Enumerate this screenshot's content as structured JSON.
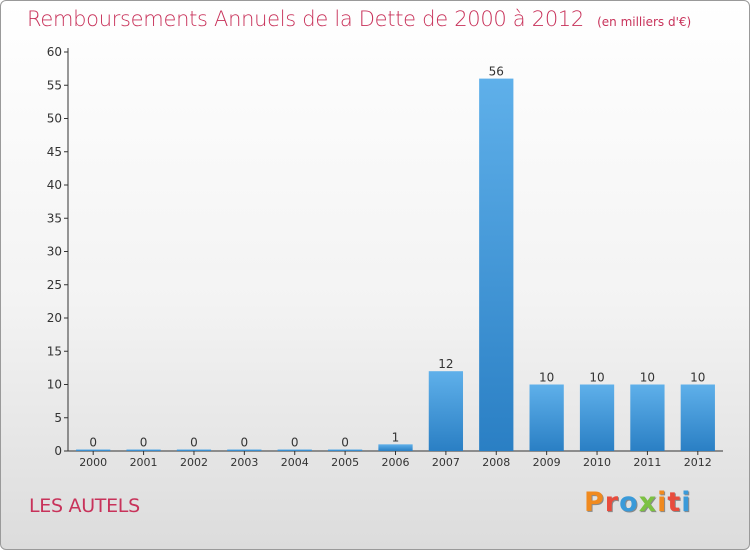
{
  "header": {
    "title": "Remboursements Annuels de la Dette de 2000 à 2012",
    "unit": "(en milliers d'€)"
  },
  "footer": {
    "commune": "LES AUTELS",
    "logo_text": "Proxiti"
  },
  "colors": {
    "title": "#c8325a",
    "bar_top": "#5fb0ea",
    "bar_bottom": "#2a7fc4",
    "logo_letters": [
      "#f08a1f",
      "#e84c3d",
      "#3a9ad9",
      "#7cc142",
      "#f08a1f",
      "#e84c3d",
      "#3a9ad9"
    ]
  },
  "chart_data": {
    "type": "bar",
    "title": "Remboursements Annuels de la Dette de 2000 à 2012",
    "unit": "(en milliers d'€)",
    "categories": [
      "2000",
      "2001",
      "2002",
      "2003",
      "2004",
      "2005",
      "2006",
      "2007",
      "2008",
      "2009",
      "2010",
      "2011",
      "2012"
    ],
    "values": [
      0,
      0,
      0,
      0,
      0,
      0,
      1,
      12,
      56,
      10,
      10,
      10,
      10
    ],
    "data_labels": [
      "0",
      "0",
      "0",
      "0",
      "0",
      "0",
      "1",
      "12",
      "56",
      "10",
      "10",
      "10",
      "10"
    ],
    "ylim": [
      0,
      60
    ],
    "yticks": [
      0,
      5,
      10,
      15,
      20,
      25,
      30,
      35,
      40,
      45,
      50,
      55,
      60
    ],
    "grid": false,
    "legend": "none"
  }
}
